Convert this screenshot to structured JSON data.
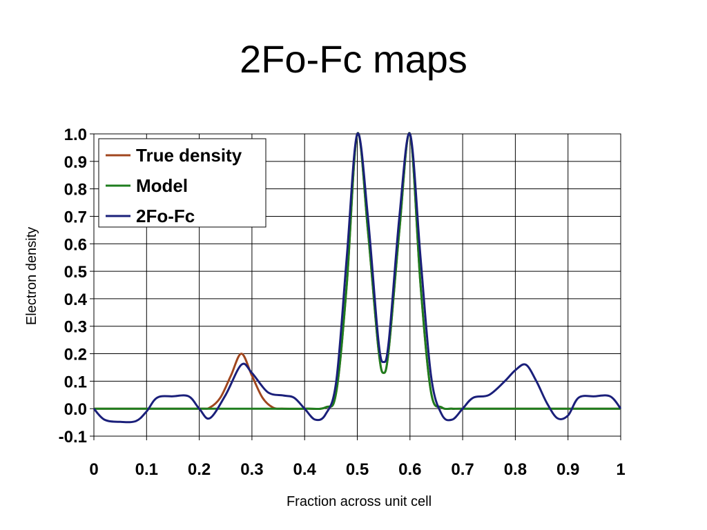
{
  "title": "2Fo-Fc maps",
  "colors": {
    "true_density": "#A0461E",
    "model": "#1E7D1E",
    "two_fo_fc": "#1A1F7A",
    "grid": "#000000",
    "background": "#FFFFFF"
  },
  "chart_data": {
    "type": "line",
    "title": "",
    "xlabel": "Fraction across unit cell",
    "ylabel": "Electron density",
    "xlim": [
      0,
      1
    ],
    "ylim": [
      -0.1,
      1.0
    ],
    "x_ticks": [
      0,
      0.1,
      0.2,
      0.3,
      0.4,
      0.5,
      0.6,
      0.7,
      0.8,
      0.9,
      1
    ],
    "x_tick_labels": [
      "0",
      "0.1",
      "0.2",
      "0.3",
      "0.4",
      "0.5",
      "0.6",
      "0.7",
      "0.8",
      "0.9",
      "1"
    ],
    "y_ticks": [
      -0.1,
      0.0,
      0.1,
      0.2,
      0.3,
      0.4,
      0.5,
      0.6,
      0.7,
      0.8,
      0.9,
      1.0
    ],
    "y_tick_labels": [
      "-0.1",
      "0.0",
      "0.1",
      "0.2",
      "0.3",
      "0.4",
      "0.5",
      "0.6",
      "0.7",
      "0.8",
      "0.9",
      "1.0"
    ],
    "grid": true,
    "legend_position": "top-left",
    "series": [
      {
        "name": "True density",
        "color_key": "true_density",
        "x": [
          0,
          0.1,
          0.2,
          0.22,
          0.24,
          0.26,
          0.28,
          0.3,
          0.32,
          0.34,
          0.36,
          0.4,
          0.44,
          0.46,
          0.48,
          0.5,
          0.52,
          0.54,
          0.55,
          0.56,
          0.58,
          0.6,
          0.62,
          0.64,
          0.66,
          0.68,
          0.7,
          0.8,
          0.9,
          1
        ],
        "y": [
          0,
          0,
          0,
          0.004,
          0.04,
          0.12,
          0.2,
          0.12,
          0.04,
          0.004,
          0,
          0,
          0.005,
          0.06,
          0.45,
          1.0,
          0.65,
          0.22,
          0.13,
          0.22,
          0.65,
          1.0,
          0.45,
          0.06,
          0.005,
          0,
          0,
          0,
          0,
          0
        ]
      },
      {
        "name": "Model",
        "color_key": "model",
        "x": [
          0,
          0.1,
          0.2,
          0.3,
          0.4,
          0.44,
          0.46,
          0.48,
          0.5,
          0.52,
          0.54,
          0.55,
          0.56,
          0.58,
          0.6,
          0.62,
          0.64,
          0.66,
          0.68,
          0.7,
          0.8,
          0.9,
          1
        ],
        "y": [
          0,
          0,
          0,
          0,
          0,
          0.005,
          0.06,
          0.45,
          1.0,
          0.65,
          0.22,
          0.13,
          0.22,
          0.65,
          1.0,
          0.45,
          0.06,
          0.005,
          0,
          0,
          0,
          0,
          0
        ]
      },
      {
        "name": "2Fo-Fc",
        "color_key": "two_fo_fc",
        "x": [
          0,
          0.02,
          0.05,
          0.08,
          0.1,
          0.12,
          0.15,
          0.18,
          0.2,
          0.22,
          0.25,
          0.28,
          0.3,
          0.33,
          0.36,
          0.38,
          0.4,
          0.42,
          0.44,
          0.46,
          0.48,
          0.5,
          0.52,
          0.54,
          0.55,
          0.56,
          0.58,
          0.6,
          0.62,
          0.64,
          0.66,
          0.68,
          0.7,
          0.72,
          0.75,
          0.78,
          0.8,
          0.82,
          0.84,
          0.86,
          0.88,
          0.9,
          0.92,
          0.95,
          0.98,
          1
        ],
        "y": [
          0,
          -0.04,
          -0.048,
          -0.045,
          -0.01,
          0.04,
          0.045,
          0.045,
          0.0,
          -0.035,
          0.05,
          0.16,
          0.13,
          0.06,
          0.048,
          0.04,
          0.0,
          -0.04,
          -0.02,
          0.1,
          0.55,
          1.0,
          0.7,
          0.25,
          0.17,
          0.25,
          0.7,
          1.0,
          0.55,
          0.12,
          -0.02,
          -0.04,
          0.0,
          0.04,
          0.05,
          0.1,
          0.14,
          0.16,
          0.1,
          0.02,
          -0.035,
          -0.025,
          0.04,
          0.045,
          0.045,
          0.0
        ]
      }
    ]
  }
}
